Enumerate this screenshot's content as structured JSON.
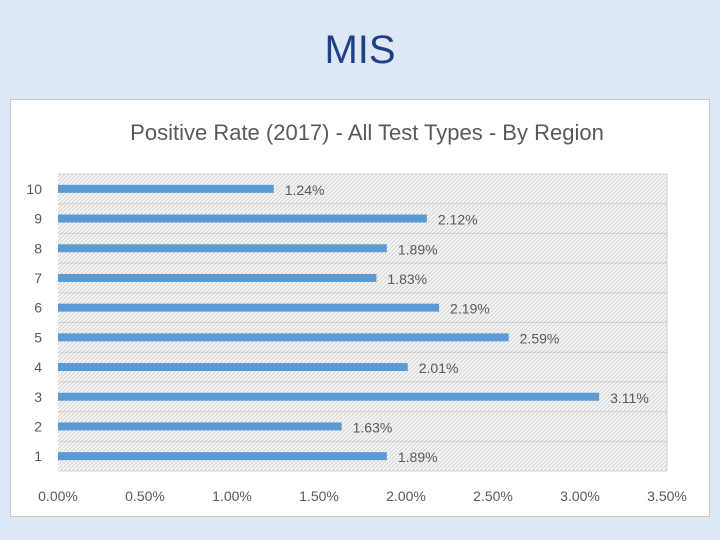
{
  "slide": {
    "title": "MIS"
  },
  "chart_data": {
    "type": "bar",
    "orientation": "horizontal",
    "title": "Positive Rate (2017) - All Test Types - By Region",
    "categories": [
      "1",
      "2",
      "3",
      "4",
      "5",
      "6",
      "7",
      "8",
      "9",
      "10"
    ],
    "values": [
      1.89,
      1.63,
      3.11,
      2.01,
      2.59,
      2.19,
      1.83,
      1.89,
      2.12,
      1.24
    ],
    "data_labels": [
      "1.89%",
      "1.63%",
      "3.11%",
      "2.01%",
      "2.59%",
      "2.19%",
      "1.83%",
      "1.89%",
      "2.12%",
      "1.24%"
    ],
    "xlim": [
      0,
      3.5
    ],
    "x_ticks": [
      "0.00%",
      "0.50%",
      "1.00%",
      "1.50%",
      "2.00%",
      "2.50%",
      "3.00%",
      "3.50%"
    ],
    "xlabel": "",
    "ylabel": "",
    "legend": "none",
    "grid": true,
    "colors": {
      "bar": "#5b9bd5",
      "plot_bg": "#ececec",
      "grid": "#d0d0d0",
      "text": "#595959"
    }
  }
}
